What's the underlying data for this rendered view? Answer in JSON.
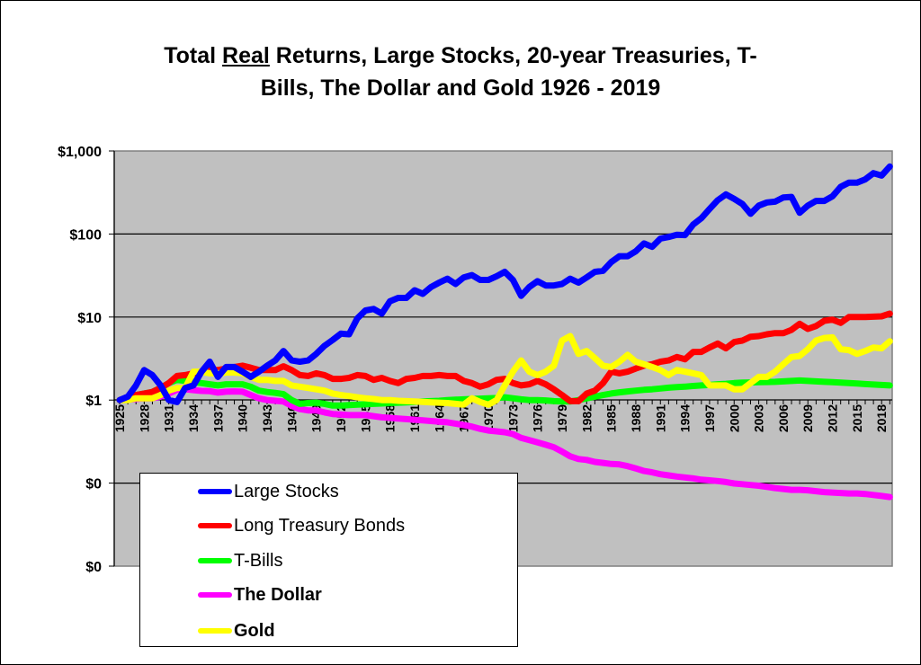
{
  "chart_data": {
    "type": "line",
    "title_parts": [
      "Total ",
      "Real",
      " Returns, Large Stocks, 20-year Treasuries, T-",
      "Bills, The Dollar and Gold 1926 - 2019"
    ],
    "xlabel": "",
    "ylabel": "",
    "y_scale": "log",
    "ylim": [
      0.01,
      1000
    ],
    "y_ticks": [
      {
        "value": 1000,
        "label": "$1,000"
      },
      {
        "value": 100,
        "label": "$100"
      },
      {
        "value": 10,
        "label": "$10"
      },
      {
        "value": 1,
        "label": "$1"
      },
      {
        "value": 0.1,
        "label": "$0"
      },
      {
        "value": 0.01,
        "label": "$0"
      }
    ],
    "xlim": [
      1925,
      2019
    ],
    "x_tick_labels": [
      "1925",
      "1928",
      "1931",
      "1934",
      "1937",
      "1940",
      "1943",
      "1946",
      "1949",
      "1952",
      "1955",
      "1958",
      "1961",
      "1964",
      "1967",
      "1970",
      "1973",
      "1976",
      "1979",
      "1982",
      "1985",
      "1988",
      "1991",
      "1994",
      "1997",
      "2000",
      "2003",
      "2006",
      "2009",
      "2012",
      "2015",
      "2018"
    ],
    "grid": "horizontal major gridlines",
    "plot_background": "#c0c0c0",
    "legend_placement": "bottom-left, overlapping plot",
    "x_start_year": 1925,
    "series": [
      {
        "name": "Large Stocks",
        "color": "#0000ff",
        "bold": false,
        "values": [
          1,
          1.1,
          1.5,
          2.3,
          2.0,
          1.5,
          1.0,
          0.95,
          1.4,
          1.5,
          2.2,
          2.9,
          1.9,
          2.5,
          2.5,
          2.2,
          1.9,
          2.2,
          2.6,
          3.0,
          3.9,
          3.0,
          2.9,
          3.0,
          3.6,
          4.5,
          5.3,
          6.3,
          6.2,
          9.6,
          12,
          12.5,
          11,
          15.5,
          17,
          17,
          21,
          19,
          23,
          26,
          29,
          25,
          30,
          32,
          28,
          28,
          31,
          35,
          28,
          18,
          23,
          27,
          24,
          24,
          25,
          29,
          26,
          30,
          35,
          36,
          46,
          54,
          54,
          62,
          77,
          70,
          88,
          92,
          98,
          97,
          130,
          155,
          200,
          255,
          300,
          265,
          230,
          175,
          220,
          240,
          245,
          275,
          280,
          180,
          220,
          250,
          250,
          285,
          370,
          415,
          415,
          455,
          540,
          505,
          650
        ]
      },
      {
        "name": "Long Treasury Bonds",
        "color": "#ff0000",
        "bold": false,
        "values": [
          1,
          1.08,
          1.15,
          1.2,
          1.25,
          1.4,
          1.6,
          1.95,
          2.0,
          2.1,
          2.2,
          2.3,
          2.3,
          2.4,
          2.5,
          2.6,
          2.45,
          2.3,
          2.3,
          2.3,
          2.55,
          2.3,
          2.0,
          1.95,
          2.1,
          2.0,
          1.8,
          1.8,
          1.85,
          2.0,
          1.95,
          1.75,
          1.85,
          1.7,
          1.6,
          1.8,
          1.85,
          1.95,
          1.95,
          2.0,
          1.95,
          1.95,
          1.7,
          1.6,
          1.45,
          1.55,
          1.75,
          1.8,
          1.6,
          1.5,
          1.55,
          1.7,
          1.55,
          1.35,
          1.15,
          0.97,
          0.97,
          1.2,
          1.3,
          1.6,
          2.2,
          2.1,
          2.2,
          2.4,
          2.6,
          2.7,
          2.9,
          3.0,
          3.3,
          3.1,
          3.8,
          3.8,
          4.3,
          4.8,
          4.2,
          5.0,
          5.2,
          5.8,
          5.9,
          6.2,
          6.4,
          6.4,
          7.0,
          8.3,
          7.2,
          7.8,
          9.0,
          9.3,
          8.5,
          10,
          10,
          10,
          10.1,
          10.2,
          11
        ]
      },
      {
        "name": "T-Bills",
        "color": "#00ff00",
        "bold": false,
        "values": [
          1,
          1.07,
          1.15,
          1.2,
          1.25,
          1.4,
          1.6,
          1.75,
          1.7,
          1.65,
          1.6,
          1.55,
          1.5,
          1.55,
          1.55,
          1.55,
          1.45,
          1.3,
          1.25,
          1.22,
          1.18,
          1.0,
          0.9,
          0.92,
          0.93,
          0.9,
          0.86,
          0.86,
          0.87,
          0.88,
          0.89,
          0.9,
          0.91,
          0.92,
          0.93,
          0.94,
          0.95,
          0.96,
          0.97,
          0.98,
          1.0,
          1.01,
          1.02,
          1.03,
          1.04,
          1.05,
          1.06,
          1.08,
          1.05,
          1.02,
          1.0,
          1.0,
          0.99,
          0.97,
          0.96,
          0.96,
          1.0,
          1.05,
          1.1,
          1.15,
          1.2,
          1.24,
          1.27,
          1.3,
          1.33,
          1.35,
          1.38,
          1.41,
          1.43,
          1.45,
          1.48,
          1.5,
          1.52,
          1.55,
          1.57,
          1.6,
          1.62,
          1.63,
          1.64,
          1.65,
          1.66,
          1.68,
          1.7,
          1.72,
          1.7,
          1.68,
          1.66,
          1.64,
          1.62,
          1.6,
          1.58,
          1.56,
          1.54,
          1.52,
          1.5
        ]
      },
      {
        "name": "The Dollar",
        "color": "#ff00ff",
        "bold": true,
        "values": [
          1,
          1.01,
          1.03,
          1.05,
          1.05,
          1.1,
          1.2,
          1.33,
          1.35,
          1.32,
          1.29,
          1.28,
          1.23,
          1.26,
          1.27,
          1.26,
          1.15,
          1.05,
          1.0,
          0.98,
          0.96,
          0.85,
          0.78,
          0.75,
          0.75,
          0.71,
          0.68,
          0.67,
          0.66,
          0.66,
          0.66,
          0.64,
          0.62,
          0.61,
          0.6,
          0.59,
          0.58,
          0.57,
          0.56,
          0.55,
          0.54,
          0.52,
          0.5,
          0.48,
          0.45,
          0.43,
          0.42,
          0.41,
          0.39,
          0.35,
          0.33,
          0.31,
          0.29,
          0.27,
          0.24,
          0.21,
          0.195,
          0.19,
          0.18,
          0.175,
          0.17,
          0.168,
          0.16,
          0.15,
          0.14,
          0.135,
          0.128,
          0.124,
          0.12,
          0.117,
          0.114,
          0.11,
          0.108,
          0.106,
          0.103,
          0.099,
          0.097,
          0.095,
          0.093,
          0.09,
          0.087,
          0.085,
          0.083,
          0.083,
          0.082,
          0.08,
          0.078,
          0.077,
          0.076,
          0.075,
          0.075,
          0.074,
          0.072,
          0.07,
          0.068
        ]
      },
      {
        "name": "Gold",
        "color": "#ffff00",
        "bold": true,
        "values": [
          1,
          1.0,
          1.05,
          1.05,
          1.05,
          1.15,
          1.3,
          1.4,
          1.4,
          2.2,
          2.2,
          2.1,
          2.1,
          2.15,
          2.15,
          2.1,
          1.9,
          1.75,
          1.75,
          1.7,
          1.7,
          1.5,
          1.45,
          1.4,
          1.35,
          1.3,
          1.2,
          1.15,
          1.12,
          1.08,
          1.05,
          1.03,
          1.0,
          1.0,
          0.98,
          0.97,
          0.96,
          0.95,
          0.94,
          0.93,
          0.92,
          0.9,
          0.88,
          1.05,
          0.95,
          0.88,
          1.0,
          1.5,
          2.2,
          3.0,
          2.2,
          2.0,
          2.2,
          2.6,
          5.2,
          5.9,
          3.6,
          3.9,
          3.2,
          2.6,
          2.5,
          2.9,
          3.5,
          2.9,
          2.7,
          2.5,
          2.3,
          2.0,
          2.3,
          2.2,
          2.1,
          2.0,
          1.5,
          1.5,
          1.5,
          1.35,
          1.35,
          1.6,
          1.9,
          1.9,
          2.2,
          2.7,
          3.3,
          3.4,
          4.1,
          5.2,
          5.6,
          5.7,
          4.1,
          4.0,
          3.6,
          3.9,
          4.3,
          4.2,
          5.1
        ]
      }
    ]
  }
}
